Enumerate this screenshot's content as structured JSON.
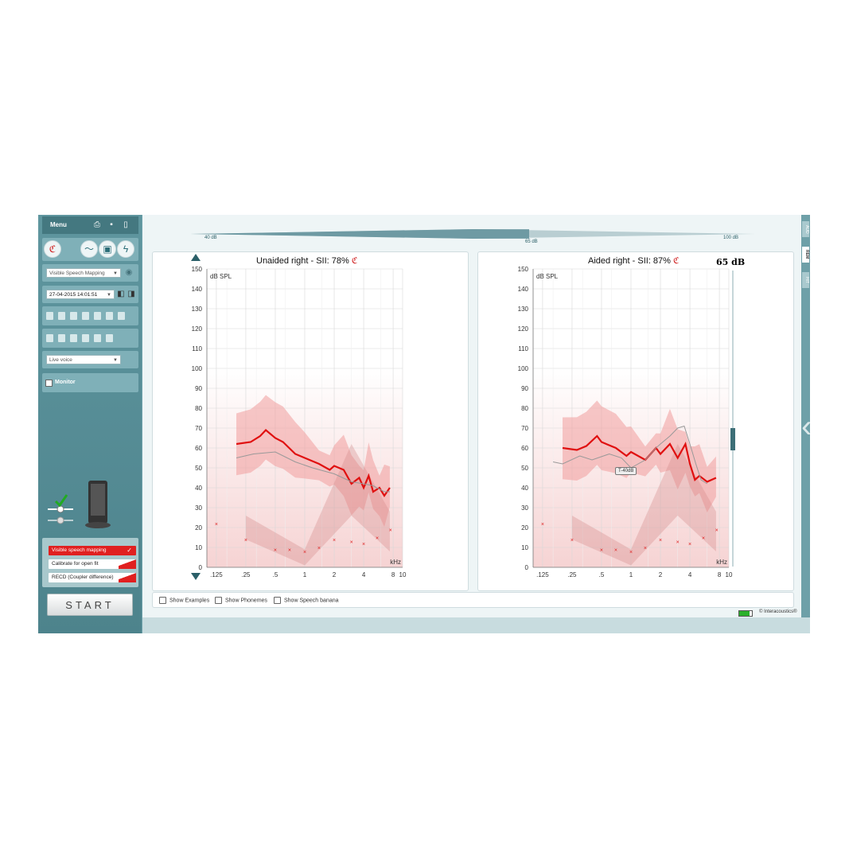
{
  "sidebar": {
    "menu_label": "Menu",
    "program_select": "Visible Speech Mapping",
    "session_select": "27-04-2015 14:01:51",
    "source_select": "Live voice",
    "monitor_label": "Monitor",
    "buttons": [
      {
        "label": "Visible speech mapping",
        "active": true
      },
      {
        "label": "Calibrate for open fit",
        "active": false
      },
      {
        "label": "RECD (Coupler difference)",
        "active": false
      }
    ],
    "start_label": "START"
  },
  "level_slider": {
    "min_label": "40 dB",
    "mid_label": "65 dB",
    "max_label": "100 dB",
    "value_fraction": 0.6
  },
  "left_chart": {
    "title": "Unaided right - SII: 78%"
  },
  "right_chart": {
    "title": "Aided right - SII: 87%",
    "level_label": "65 dB",
    "tooltip": "T-40dB"
  },
  "axis": {
    "y_ticks": [
      "150",
      "140",
      "130",
      "120",
      "110",
      "100",
      "90",
      "80",
      "70",
      "60",
      "50",
      "40",
      "30",
      "20",
      "10",
      "0"
    ],
    "x_ticks": [
      ".125",
      ".25",
      ".5",
      "1",
      "2",
      "4",
      "8",
      "10"
    ],
    "y_unit": "dB SPL",
    "x_unit": "kHz"
  },
  "options": [
    "Show Examples",
    "Show Phonemes",
    "Show Speech banana"
  ],
  "right_tabs": [
    "AUD",
    "REM",
    "HIT"
  ],
  "brand": "© Interacoustics®",
  "chart_data": [
    {
      "type": "line",
      "title": "Unaided right - SII: 78%",
      "ylabel": "dB SPL",
      "xlabel": "kHz",
      "ylim": [
        0,
        150
      ],
      "x_scale": "log",
      "xlim": [
        0.1,
        10
      ],
      "series": [
        {
          "values": [
            [
              0.2,
              62
            ],
            [
              0.28,
              63
            ],
            [
              0.35,
              66
            ],
            [
              0.4,
              69
            ],
            [
              0.5,
              65
            ],
            [
              0.6,
              63
            ],
            [
              0.8,
              57
            ],
            [
              1,
              55
            ],
            [
              1.4,
              52
            ],
            [
              1.8,
              49
            ],
            [
              2,
              51
            ],
            [
              2.5,
              49
            ],
            [
              3,
              42
            ],
            [
              3.6,
              45
            ],
            [
              4,
              40
            ],
            [
              4.5,
              46
            ],
            [
              5,
              38
            ],
            [
              5.8,
              40
            ],
            [
              6.5,
              36
            ],
            [
              7.4,
              40
            ]
          ]
        },
        {
          "values": [
            [
              0.2,
              55
            ],
            [
              0.3,
              57
            ],
            [
              0.5,
              58
            ],
            [
              0.8,
              53
            ],
            [
              1.2,
              50
            ],
            [
              2,
              47
            ],
            [
              3,
              43
            ],
            [
              4,
              42
            ],
            [
              5,
              41
            ],
            [
              6.5,
              38
            ],
            [
              7.4,
              38
            ]
          ]
        }
      ],
      "markers": [
        [
          0.125,
          22
        ],
        [
          0.25,
          14
        ],
        [
          0.5,
          9
        ],
        [
          0.7,
          9
        ],
        [
          1,
          8
        ],
        [
          1.4,
          10
        ],
        [
          2,
          14
        ],
        [
          3,
          13
        ],
        [
          4,
          12
        ],
        [
          5.5,
          15
        ],
        [
          7.5,
          19
        ]
      ]
    },
    {
      "type": "line",
      "title": "Aided right - SII: 87%",
      "ylabel": "dB SPL",
      "xlabel": "kHz",
      "ylim": [
        0,
        150
      ],
      "x_scale": "log",
      "xlim": [
        0.1,
        10
      ],
      "series": [
        {
          "values": [
            [
              0.2,
              60
            ],
            [
              0.28,
              59
            ],
            [
              0.35,
              61
            ],
            [
              0.45,
              66
            ],
            [
              0.5,
              63
            ],
            [
              0.7,
              60
            ],
            [
              0.9,
              56
            ],
            [
              1,
              58
            ],
            [
              1.4,
              54
            ],
            [
              1.8,
              60
            ],
            [
              2,
              57
            ],
            [
              2.5,
              62
            ],
            [
              3,
              55
            ],
            [
              3.6,
              62
            ],
            [
              4,
              52
            ],
            [
              4.5,
              44
            ],
            [
              5,
              46
            ],
            [
              6,
              43
            ],
            [
              7.4,
              45
            ]
          ]
        },
        {
          "values": [
            [
              0.16,
              53
            ],
            [
              0.2,
              52
            ],
            [
              0.3,
              56
            ],
            [
              0.4,
              54
            ],
            [
              0.6,
              57
            ],
            [
              0.8,
              55
            ],
            [
              1,
              50
            ],
            [
              1.4,
              54
            ],
            [
              1.8,
              60
            ],
            [
              2,
              62
            ],
            [
              2.5,
              66
            ],
            [
              3,
              70
            ],
            [
              3.5,
              71
            ],
            [
              4,
              62
            ],
            [
              4.6,
              52
            ],
            [
              5.2,
              44
            ],
            [
              6,
              42
            ]
          ]
        }
      ],
      "markers": [
        [
          0.125,
          22
        ],
        [
          0.25,
          14
        ],
        [
          0.5,
          9
        ],
        [
          0.7,
          9
        ],
        [
          1,
          8
        ],
        [
          1.4,
          10
        ],
        [
          2,
          14
        ],
        [
          3,
          13
        ],
        [
          4,
          12
        ],
        [
          5.5,
          15
        ],
        [
          7.5,
          19
        ]
      ]
    }
  ]
}
